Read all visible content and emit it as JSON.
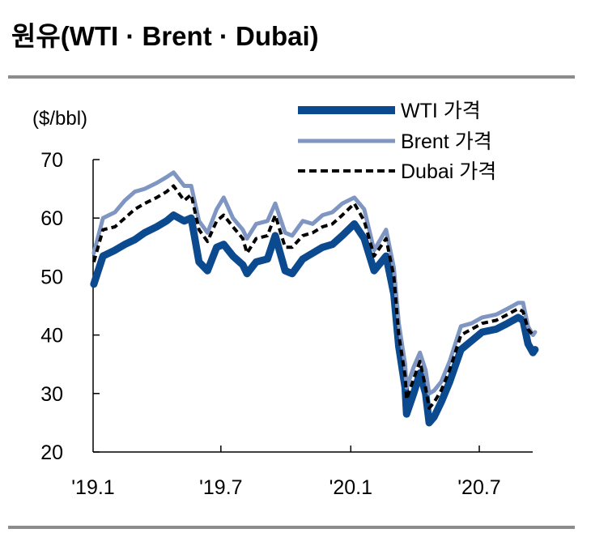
{
  "chart_data": {
    "type": "line",
    "title": "원유(WTI · Brent · Dubai)",
    "ylabel": "($/bbl)",
    "ylim": [
      20,
      70
    ],
    "yticks": [
      20,
      30,
      40,
      50,
      60,
      70
    ],
    "xticks": [
      {
        "date": "2019-01-01",
        "label": "'19.1"
      },
      {
        "date": "2019-07-01",
        "label": "'19.7"
      },
      {
        "date": "2020-01-01",
        "label": "'20.1"
      },
      {
        "date": "2020-07-01",
        "label": "'20.7"
      }
    ],
    "grid": false,
    "legend_position": "top-right",
    "x": [
      "2019-01-02",
      "2019-01-15",
      "2019-02-01",
      "2019-02-15",
      "2019-03-01",
      "2019-03-15",
      "2019-04-01",
      "2019-04-15",
      "2019-04-25",
      "2019-05-10",
      "2019-05-20",
      "2019-05-31",
      "2019-06-12",
      "2019-06-25",
      "2019-07-05",
      "2019-07-18",
      "2019-08-01",
      "2019-08-07",
      "2019-08-20",
      "2019-09-05",
      "2019-09-16",
      "2019-09-30",
      "2019-10-10",
      "2019-10-25",
      "2019-11-08",
      "2019-11-22",
      "2019-12-06",
      "2019-12-20",
      "2020-01-06",
      "2020-01-20",
      "2020-02-03",
      "2020-02-20",
      "2020-03-02",
      "2020-03-09",
      "2020-03-18",
      "2020-03-20",
      "2020-03-30",
      "2020-04-08",
      "2020-04-16",
      "2020-04-21",
      "2020-04-28",
      "2020-05-08",
      "2020-05-20",
      "2020-06-05",
      "2020-06-20",
      "2020-07-05",
      "2020-07-25",
      "2020-08-10",
      "2020-08-25",
      "2020-09-01",
      "2020-09-08",
      "2020-09-15",
      "2020-09-18"
    ],
    "series": [
      {
        "name": "WTI 가격",
        "color": "#0b4a8f",
        "style": "thick",
        "values": [
          48.7,
          53.5,
          54.5,
          55.5,
          56.3,
          57.5,
          58.5,
          59.5,
          60.5,
          59.5,
          60,
          52.5,
          51,
          55,
          55.5,
          53.5,
          52,
          50.5,
          52.5,
          53,
          57,
          51,
          50.5,
          53,
          54,
          55,
          55.5,
          57,
          59,
          56.5,
          51,
          53.5,
          47,
          38,
          31,
          26.5,
          30,
          33.5,
          30,
          25,
          26,
          28.5,
          32,
          37.5,
          39,
          40.5,
          41,
          42,
          43,
          42.5,
          38.5,
          37,
          37.5
        ]
      },
      {
        "name": "Brent 가격",
        "color": "#7f96c2",
        "style": "solid",
        "values": [
          54,
          60,
          61,
          63,
          64.5,
          65,
          66,
          67,
          67.8,
          65.5,
          65.5,
          59.5,
          57.5,
          61.5,
          63.5,
          60,
          58,
          56.5,
          59,
          59.5,
          62.5,
          57.5,
          57,
          59.5,
          59,
          60.5,
          61,
          62.5,
          63.5,
          61.5,
          54.5,
          58,
          51.5,
          42,
          35,
          31,
          34.5,
          37,
          34,
          30,
          30.5,
          32,
          35.5,
          41.5,
          42,
          43,
          43.5,
          44.5,
          45.5,
          45.5,
          41.5,
          40,
          40.5
        ]
      },
      {
        "name": "Dubai 가격",
        "color": "#000000",
        "style": "dashed",
        "values": [
          52.5,
          58,
          58.5,
          60,
          61.5,
          62.5,
          63.5,
          64.5,
          65.5,
          63,
          64,
          58,
          56,
          59.5,
          60.5,
          58.5,
          56.5,
          54,
          56.5,
          57,
          60.5,
          55,
          55,
          57,
          57.5,
          58.5,
          59,
          60.5,
          62.5,
          59.5,
          53.5,
          56.5,
          50,
          40,
          33,
          29,
          32.5,
          35.5,
          31,
          27.5,
          28.5,
          30.5,
          34,
          40,
          41,
          42,
          42.5,
          43.5,
          44.5,
          44,
          41,
          40,
          40
        ]
      }
    ]
  }
}
